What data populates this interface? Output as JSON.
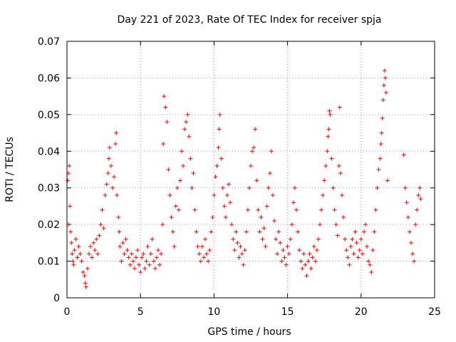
{
  "chart_data": {
    "type": "scatter",
    "title": "Day 221 of 2023, Rate Of TEC Index for receiver spja",
    "xlabel": "GPS time / hours",
    "ylabel": "ROTI / TECUs",
    "xlim": [
      0,
      25
    ],
    "ylim": [
      0,
      0.07
    ],
    "x_ticks": [
      "0",
      "5",
      "10",
      "15",
      "20",
      "25"
    ],
    "y_ticks": [
      "0",
      "0.01",
      "0.02",
      "0.03",
      "0.04",
      "0.05",
      "0.06",
      "0.07"
    ],
    "grid": true,
    "marker": "+",
    "color": "#ff0000",
    "series": [
      {
        "values": [
          [
            0.05,
            0.032
          ],
          [
            0.1,
            0.034
          ],
          [
            0.1,
            0.02
          ],
          [
            0.15,
            0.036
          ],
          [
            0.2,
            0.025
          ],
          [
            0.25,
            0.018
          ],
          [
            0.3,
            0.015
          ],
          [
            0.35,
            0.012
          ],
          [
            0.4,
            0.01
          ],
          [
            0.45,
            0.009
          ],
          [
            0.5,
            0.013
          ],
          [
            0.6,
            0.016
          ],
          [
            0.7,
            0.011
          ],
          [
            0.8,
            0.014
          ],
          [
            0.9,
            0.012
          ],
          [
            1.0,
            0.01
          ],
          [
            1.1,
            0.007
          ],
          [
            1.2,
            0.006
          ],
          [
            1.25,
            0.004
          ],
          [
            1.3,
            0.003
          ],
          [
            1.4,
            0.008
          ],
          [
            1.5,
            0.012
          ],
          [
            1.6,
            0.014
          ],
          [
            1.7,
            0.011
          ],
          [
            1.8,
            0.015
          ],
          [
            1.9,
            0.013
          ],
          [
            2.0,
            0.016
          ],
          [
            2.1,
            0.012
          ],
          [
            2.2,
            0.017
          ],
          [
            2.3,
            0.02
          ],
          [
            2.4,
            0.024
          ],
          [
            2.5,
            0.019
          ],
          [
            2.6,
            0.028
          ],
          [
            2.7,
            0.031
          ],
          [
            2.8,
            0.034
          ],
          [
            2.85,
            0.038
          ],
          [
            2.9,
            0.041
          ],
          [
            3.0,
            0.036
          ],
          [
            3.1,
            0.03
          ],
          [
            3.2,
            0.033
          ],
          [
            3.3,
            0.042
          ],
          [
            3.35,
            0.045
          ],
          [
            3.4,
            0.028
          ],
          [
            3.5,
            0.022
          ],
          [
            3.55,
            0.018
          ],
          [
            3.6,
            0.014
          ],
          [
            3.7,
            0.01
          ],
          [
            3.8,
            0.015
          ],
          [
            3.9,
            0.012
          ],
          [
            4.0,
            0.016
          ],
          [
            4.1,
            0.013
          ],
          [
            4.2,
            0.011
          ],
          [
            4.3,
            0.009
          ],
          [
            4.4,
            0.012
          ],
          [
            4.5,
            0.01
          ],
          [
            4.6,
            0.008
          ],
          [
            4.7,
            0.011
          ],
          [
            4.8,
            0.013
          ],
          [
            4.9,
            0.009
          ],
          [
            5.0,
            0.007
          ],
          [
            5.1,
            0.011
          ],
          [
            5.2,
            0.012
          ],
          [
            5.3,
            0.008
          ],
          [
            5.4,
            0.01
          ],
          [
            5.5,
            0.014
          ],
          [
            5.6,
            0.009
          ],
          [
            5.7,
            0.012
          ],
          [
            5.8,
            0.016
          ],
          [
            5.9,
            0.01
          ],
          [
            6.0,
            0.008
          ],
          [
            6.1,
            0.011
          ],
          [
            6.2,
            0.013
          ],
          [
            6.3,
            0.009
          ],
          [
            6.4,
            0.012
          ],
          [
            6.5,
            0.02
          ],
          [
            6.55,
            0.042
          ],
          [
            6.6,
            0.055
          ],
          [
            6.7,
            0.052
          ],
          [
            6.8,
            0.048
          ],
          [
            6.9,
            0.035
          ],
          [
            7.0,
            0.028
          ],
          [
            7.1,
            0.022
          ],
          [
            7.2,
            0.018
          ],
          [
            7.3,
            0.014
          ],
          [
            7.4,
            0.025
          ],
          [
            7.5,
            0.03
          ],
          [
            7.6,
            0.024
          ],
          [
            7.7,
            0.032
          ],
          [
            7.8,
            0.04
          ],
          [
            7.9,
            0.036
          ],
          [
            8.0,
            0.046
          ],
          [
            8.1,
            0.048
          ],
          [
            8.2,
            0.05
          ],
          [
            8.3,
            0.044
          ],
          [
            8.4,
            0.038
          ],
          [
            8.5,
            0.03
          ],
          [
            8.6,
            0.034
          ],
          [
            8.7,
            0.024
          ],
          [
            8.8,
            0.018
          ],
          [
            8.9,
            0.014
          ],
          [
            9.0,
            0.012
          ],
          [
            9.1,
            0.01
          ],
          [
            9.2,
            0.014
          ],
          [
            9.3,
            0.011
          ],
          [
            9.4,
            0.016
          ],
          [
            9.5,
            0.012
          ],
          [
            9.6,
            0.01
          ],
          [
            9.7,
            0.013
          ],
          [
            9.8,
            0.018
          ],
          [
            9.9,
            0.022
          ],
          [
            10.0,
            0.028
          ],
          [
            10.1,
            0.033
          ],
          [
            10.2,
            0.036
          ],
          [
            10.3,
            0.041
          ],
          [
            10.35,
            0.046
          ],
          [
            10.4,
            0.05
          ],
          [
            10.5,
            0.038
          ],
          [
            10.6,
            0.03
          ],
          [
            10.7,
            0.025
          ],
          [
            10.8,
            0.022
          ],
          [
            10.9,
            0.028
          ],
          [
            11.0,
            0.031
          ],
          [
            11.1,
            0.026
          ],
          [
            11.2,
            0.02
          ],
          [
            11.3,
            0.016
          ],
          [
            11.4,
            0.013
          ],
          [
            11.5,
            0.018
          ],
          [
            11.6,
            0.015
          ],
          [
            11.7,
            0.011
          ],
          [
            11.8,
            0.014
          ],
          [
            11.9,
            0.012
          ],
          [
            12.0,
            0.009
          ],
          [
            12.1,
            0.013
          ],
          [
            12.2,
            0.018
          ],
          [
            12.3,
            0.024
          ],
          [
            12.4,
            0.03
          ],
          [
            12.5,
            0.036
          ],
          [
            12.6,
            0.04
          ],
          [
            12.7,
            0.041
          ],
          [
            12.8,
            0.046
          ],
          [
            12.9,
            0.032
          ],
          [
            13.0,
            0.024
          ],
          [
            13.1,
            0.018
          ],
          [
            13.2,
            0.022
          ],
          [
            13.3,
            0.016
          ],
          [
            13.4,
            0.019
          ],
          [
            13.5,
            0.014
          ],
          [
            13.6,
            0.025
          ],
          [
            13.7,
            0.03
          ],
          [
            13.8,
            0.034
          ],
          [
            13.9,
            0.04
          ],
          [
            14.0,
            0.028
          ],
          [
            14.1,
            0.021
          ],
          [
            14.2,
            0.016
          ],
          [
            14.3,
            0.012
          ],
          [
            14.4,
            0.018
          ],
          [
            14.5,
            0.015
          ],
          [
            14.6,
            0.01
          ],
          [
            14.7,
            0.013
          ],
          [
            14.8,
            0.011
          ],
          [
            14.9,
            0.009
          ],
          [
            15.0,
            0.014
          ],
          [
            15.1,
            0.012
          ],
          [
            15.2,
            0.016
          ],
          [
            15.3,
            0.02
          ],
          [
            15.4,
            0.026
          ],
          [
            15.5,
            0.03
          ],
          [
            15.6,
            0.024
          ],
          [
            15.7,
            0.018
          ],
          [
            15.8,
            0.013
          ],
          [
            15.9,
            0.01
          ],
          [
            16.0,
            0.008
          ],
          [
            16.1,
            0.012
          ],
          [
            16.2,
            0.009
          ],
          [
            16.3,
            0.006
          ],
          [
            16.4,
            0.01
          ],
          [
            16.5,
            0.012
          ],
          [
            16.6,
            0.008
          ],
          [
            16.7,
            0.011
          ],
          [
            16.8,
            0.014
          ],
          [
            16.9,
            0.01
          ],
          [
            17.0,
            0.013
          ],
          [
            17.1,
            0.016
          ],
          [
            17.2,
            0.02
          ],
          [
            17.3,
            0.024
          ],
          [
            17.4,
            0.028
          ],
          [
            17.5,
            0.032
          ],
          [
            17.6,
            0.036
          ],
          [
            17.7,
            0.04
          ],
          [
            17.75,
            0.044
          ],
          [
            17.8,
            0.046
          ],
          [
            17.85,
            0.051
          ],
          [
            17.9,
            0.05
          ],
          [
            18.0,
            0.038
          ],
          [
            18.1,
            0.03
          ],
          [
            18.2,
            0.024
          ],
          [
            18.3,
            0.02
          ],
          [
            18.4,
            0.017
          ],
          [
            18.5,
            0.036
          ],
          [
            18.55,
            0.052
          ],
          [
            18.6,
            0.034
          ],
          [
            18.7,
            0.028
          ],
          [
            18.8,
            0.022
          ],
          [
            18.9,
            0.016
          ],
          [
            19.0,
            0.013
          ],
          [
            19.1,
            0.011
          ],
          [
            19.2,
            0.009
          ],
          [
            19.3,
            0.014
          ],
          [
            19.4,
            0.016
          ],
          [
            19.5,
            0.012
          ],
          [
            19.6,
            0.018
          ],
          [
            19.7,
            0.015
          ],
          [
            19.8,
            0.011
          ],
          [
            19.9,
            0.013
          ],
          [
            20.0,
            0.016
          ],
          [
            20.1,
            0.012
          ],
          [
            20.2,
            0.018
          ],
          [
            20.3,
            0.02
          ],
          [
            20.4,
            0.014
          ],
          [
            20.5,
            0.01
          ],
          [
            20.6,
            0.009
          ],
          [
            20.7,
            0.007
          ],
          [
            20.8,
            0.013
          ],
          [
            20.9,
            0.018
          ],
          [
            21.0,
            0.024
          ],
          [
            21.1,
            0.03
          ],
          [
            21.2,
            0.035
          ],
          [
            21.3,
            0.038
          ],
          [
            21.35,
            0.042
          ],
          [
            21.4,
            0.045
          ],
          [
            21.45,
            0.049
          ],
          [
            21.5,
            0.054
          ],
          [
            21.55,
            0.058
          ],
          [
            21.6,
            0.062
          ],
          [
            21.65,
            0.06
          ],
          [
            21.7,
            0.056
          ],
          [
            21.8,
            0.032
          ],
          [
            22.9,
            0.039
          ],
          [
            23.0,
            0.03
          ],
          [
            23.1,
            0.026
          ],
          [
            23.2,
            0.022
          ],
          [
            23.3,
            0.018
          ],
          [
            23.4,
            0.015
          ],
          [
            23.5,
            0.012
          ],
          [
            23.6,
            0.01
          ],
          [
            23.7,
            0.02
          ],
          [
            23.8,
            0.024
          ],
          [
            23.9,
            0.028
          ],
          [
            24.0,
            0.03
          ],
          [
            24.05,
            0.027
          ]
        ]
      }
    ]
  }
}
